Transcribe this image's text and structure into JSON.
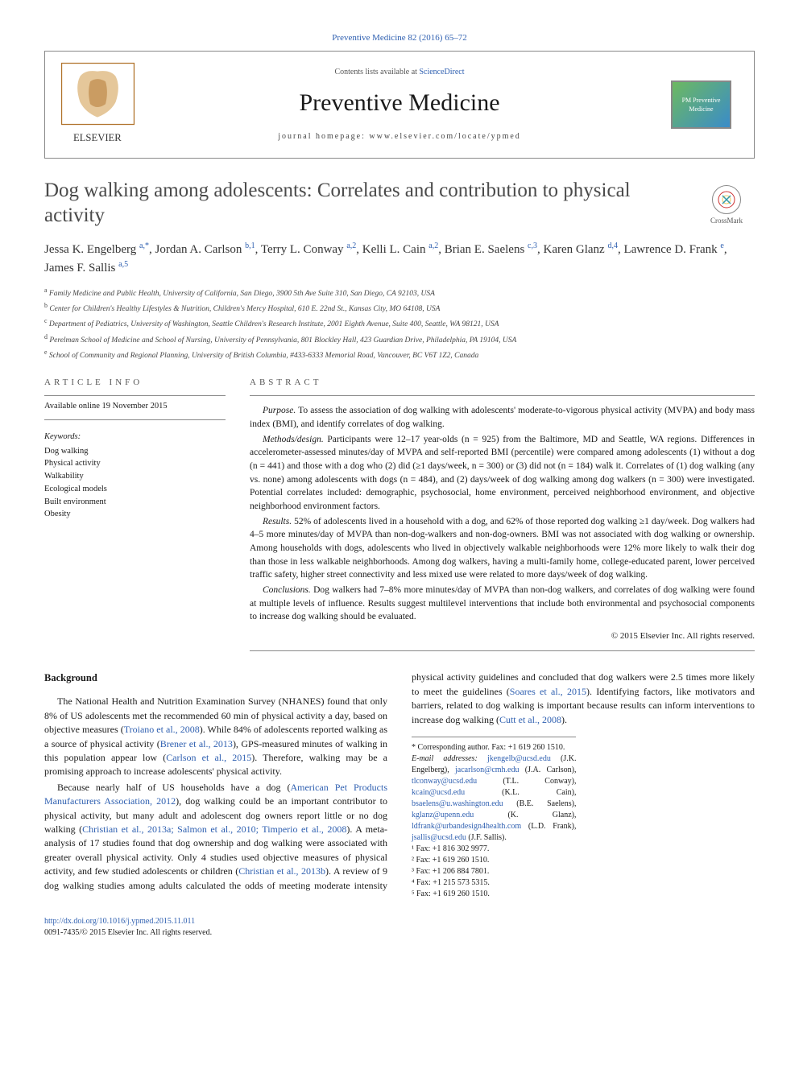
{
  "top_citation": "Preventive Medicine 82 (2016) 65–72",
  "header": {
    "lists_prefix": "Contents lists available at ",
    "lists_link": "ScienceDirect",
    "journal": "Preventive Medicine",
    "homepage_label": "journal homepage: ",
    "homepage_url": "www.elsevier.com/locate/ypmed",
    "elsevier": "ELSEVIER",
    "pm_logo_text": "PM\nPreventive Medicine"
  },
  "crossmark": "CrossMark",
  "title": "Dog walking among adolescents: Correlates and contribution to physical activity",
  "authors_html": "Jessa K. Engelberg <sup>a,*</sup>, Jordan A. Carlson <sup>b,1</sup>, Terry L. Conway <sup>a,2</sup>, Kelli L. Cain <sup>a,2</sup>, Brian E. Saelens <sup>c,3</sup>, Karen Glanz <sup>d,4</sup>, Lawrence D. Frank <sup>e</sup>, James F. Sallis <sup>a,5</sup>",
  "affiliations": [
    {
      "sup": "a",
      "text": "Family Medicine and Public Health, University of California, San Diego, 3900 5th Ave Suite 310, San Diego, CA 92103, USA"
    },
    {
      "sup": "b",
      "text": "Center for Children's Healthy Lifestyles & Nutrition, Children's Mercy Hospital, 610 E. 22nd St., Kansas City, MO 64108, USA"
    },
    {
      "sup": "c",
      "text": "Department of Pediatrics, University of Washington, Seattle Children's Research Institute, 2001 Eighth Avenue, Suite 400, Seattle, WA 98121, USA"
    },
    {
      "sup": "d",
      "text": "Perelman School of Medicine and School of Nursing, University of Pennsylvania, 801 Blockley Hall, 423 Guardian Drive, Philadelphia, PA 19104, USA"
    },
    {
      "sup": "e",
      "text": "School of Community and Regional Planning, University of British Columbia, #433-6333 Memorial Road, Vancouver, BC V6T 1Z2, Canada"
    }
  ],
  "article_info": {
    "head": "article info",
    "available": "Available online 19 November 2015",
    "kw_head": "Keywords:",
    "keywords": [
      "Dog walking",
      "Physical activity",
      "Walkability",
      "Ecological models",
      "Built environment",
      "Obesity"
    ]
  },
  "abstract": {
    "head": "abstract",
    "paras": [
      {
        "label": "Purpose.",
        "text": " To assess the association of dog walking with adolescents' moderate-to-vigorous physical activity (MVPA) and body mass index (BMI), and identify correlates of dog walking."
      },
      {
        "label": "Methods/design.",
        "text": " Participants were 12–17 year-olds (n = 925) from the Baltimore, MD and Seattle, WA regions. Differences in accelerometer-assessed minutes/day of MVPA and self-reported BMI (percentile) were compared among adolescents (1) without a dog (n = 441) and those with a dog who (2) did (≥1 days/week, n = 300) or (3) did not (n = 184) walk it. Correlates of (1) dog walking (any vs. none) among adolescents with dogs (n = 484), and (2) days/week of dog walking among dog walkers (n = 300) were investigated. Potential correlates included: demographic, psychosocial, home environment, perceived neighborhood environment, and objective neighborhood environment factors."
      },
      {
        "label": "Results.",
        "text": " 52% of adolescents lived in a household with a dog, and 62% of those reported dog walking ≥1 day/week. Dog walkers had 4–5 more minutes/day of MVPA than non-dog-walkers and non-dog-owners. BMI was not associated with dog walking or ownership. Among households with dogs, adolescents who lived in objectively walkable neighborhoods were 12% more likely to walk their dog than those in less walkable neighborhoods. Among dog walkers, having a multi-family home, college-educated parent, lower perceived traffic safety, higher street connectivity and less mixed use were related to more days/week of dog walking."
      },
      {
        "label": "Conclusions.",
        "text": " Dog walkers had 7–8% more minutes/day of MVPA than non-dog walkers, and correlates of dog walking were found at multiple levels of influence. Results suggest multilevel interventions that include both environmental and psychosocial components to increase dog walking should be evaluated."
      }
    ],
    "copyright": "© 2015 Elsevier Inc. All rights reserved."
  },
  "body": {
    "head": "Background",
    "p1_pre": "The National Health and Nutrition Examination Survey (NHANES) found that only 8% of US adolescents met the recommended 60 min of physical activity a day, based on objective measures (",
    "p1_l1": "Troiano et al., 2008",
    "p1_mid": "). While 84% of adolescents reported walking as a source of physical activity (",
    "p1_l2": "Brener et al., 2013",
    "p1_post1": "), GPS-measured minutes of walking in this population appear low (",
    "p1_l3": "Carlson et al., 2015",
    "p1_post2": "). Therefore, walking may be a promising approach to increase adolescents' physical activity.",
    "p2_pre": "Because nearly half of US households have a dog (",
    "p2_l1": "American Pet Products Manufacturers Association, 2012",
    "p2_mid1": "), dog walking could be an important contributor to physical activity, but many adult and adolescent dog owners report little or no dog walking (",
    "p2_l2": "Christian et al., 2013a; Salmon et al., 2010; Timperio et al., 2008",
    "p2_mid2": "). A meta-analysis of 17 studies found that dog ownership and dog walking were associated with greater overall physical activity. Only 4 studies used objective measures of physical activity, and few studied adolescents or children (",
    "p2_l3": "Christian et al., 2013b",
    "p2_mid3": "). A review of 9 dog walking studies among adults calculated the odds of meeting moderate intensity physical activity guidelines and concluded that dog walkers were 2.5 times more likely to meet the guidelines (",
    "p2_l4": "Soares et al., 2015",
    "p2_mid4": "). Identifying factors, like motivators and barriers, related to dog walking is important because results can inform interventions to increase dog walking (",
    "p2_l5": "Cutt et al., 2008",
    "p2_post": ")."
  },
  "footnotes": {
    "corr": "* Corresponding author. Fax: +1 619 260 1510.",
    "email_label": "E-mail addresses: ",
    "emails": [
      {
        "addr": "jkengelb@ucsd.edu",
        "who": " (J.K. Engelberg), "
      },
      {
        "addr": "jacarlson@cmh.edu",
        "who": " (J.A. Carlson), "
      },
      {
        "addr": "tlconway@ucsd.edu",
        "who": " (T.L. Conway), "
      },
      {
        "addr": "kcain@ucsd.edu",
        "who": " (K.L. Cain), "
      },
      {
        "addr": "bsaelens@u.washington.edu",
        "who": " (B.E. Saelens), "
      },
      {
        "addr": "kglanz@upenn.edu",
        "who": " (K. Glanz), "
      },
      {
        "addr": "ldfrank@urbandesign4health.com",
        "who": " (L.D. Frank), "
      },
      {
        "addr": "jsallis@ucsd.edu",
        "who": " (J.F. Sallis)."
      }
    ],
    "faxes": [
      "¹ Fax: +1 816 302 9977.",
      "² Fax: +1 619 260 1510.",
      "³ Fax: +1 206 884 7801.",
      "⁴ Fax: +1 215 573 5315.",
      "⁵ Fax: +1 619 260 1510."
    ]
  },
  "footer": {
    "doi": "http://dx.doi.org/10.1016/j.ypmed.2015.11.011",
    "copy": "0091-7435/© 2015 Elsevier Inc. All rights reserved."
  }
}
